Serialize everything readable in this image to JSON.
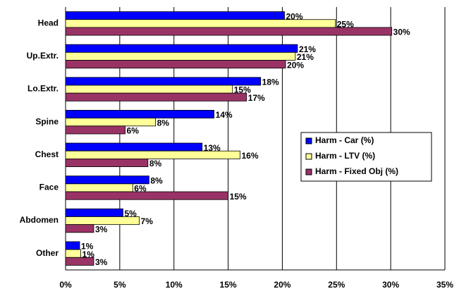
{
  "chart_data": {
    "type": "bar",
    "orientation": "horizontal",
    "categories": [
      "Head",
      "Up.Extr.",
      "Lo.Extr.",
      "Spine",
      "Chest",
      "Face",
      "Abdomen",
      "Other"
    ],
    "series": [
      {
        "name": "Harm - Car (%)",
        "color": "#0000ff",
        "values": [
          20.2,
          21.4,
          18.0,
          13.7,
          12.6,
          7.7,
          5.3,
          1.3
        ],
        "value_labels": [
          "20%",
          "21%",
          "18%",
          "14%",
          "13%",
          "8%",
          "5%",
          "1%"
        ]
      },
      {
        "name": "Harm - LTV (%)",
        "color": "#ffff99",
        "values": [
          24.9,
          21.2,
          15.4,
          8.3,
          16.1,
          6.2,
          6.8,
          1.4
        ],
        "value_labels": [
          "25%",
          "21%",
          "15%",
          "8%",
          "16%",
          "6%",
          "7%",
          "1%"
        ]
      },
      {
        "name": "Harm - Fixed Obj (%)",
        "color": "#993366",
        "values": [
          30.1,
          20.3,
          16.7,
          5.5,
          7.6,
          15.0,
          2.6,
          2.6
        ],
        "value_labels": [
          "30%",
          "20%",
          "17%",
          "6%",
          "8%",
          "15%",
          "3%",
          "3%"
        ]
      }
    ],
    "xlim": [
      0,
      35
    ],
    "xticks": [
      {
        "value": 0,
        "label": "0%"
      },
      {
        "value": 5,
        "label": "5%"
      },
      {
        "value": 10,
        "label": "10%"
      },
      {
        "value": 15,
        "label": "15%"
      },
      {
        "value": 20,
        "label": "20%"
      },
      {
        "value": 25,
        "label": "25%"
      },
      {
        "value": 30,
        "label": "30%"
      },
      {
        "value": 35,
        "label": "35%"
      }
    ],
    "grid": true,
    "legend": "right"
  }
}
